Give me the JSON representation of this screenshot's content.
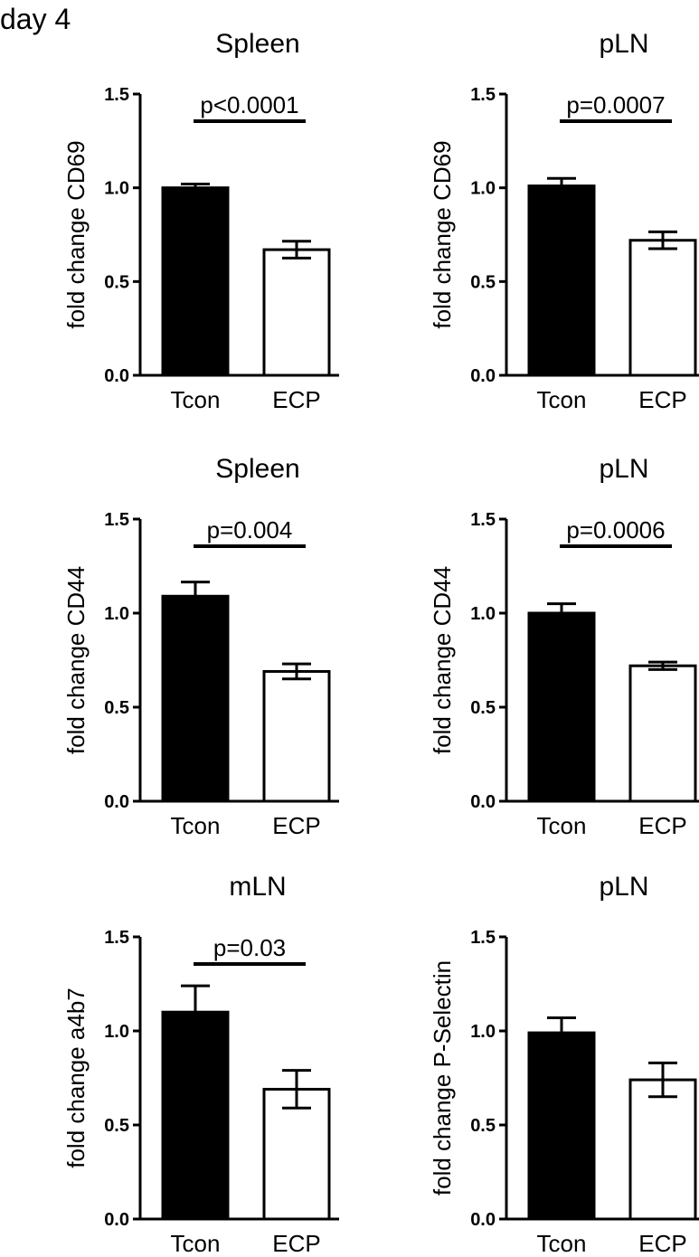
{
  "figure": {
    "panel_label": "day 4"
  },
  "colors": {
    "tcon_fill": "#000000",
    "ecp_fill": "#ffffff",
    "stroke": "#000000"
  },
  "chart_data": [
    {
      "type": "bar",
      "title": "Spleen",
      "ylabel": "fold change CD69",
      "xlabel": "",
      "categories": [
        "Tcon",
        "ECP"
      ],
      "values": [
        1.0,
        0.67
      ],
      "errors": [
        0.02,
        0.045
      ],
      "ylim": [
        0,
        1.5
      ],
      "yticks": [
        "0.0",
        "0.5",
        "1.0",
        "1.5"
      ],
      "grid": false,
      "legend": "none",
      "annotation": "p<0.0001"
    },
    {
      "type": "bar",
      "title": "pLN",
      "ylabel": "fold change CD69",
      "xlabel": "",
      "categories": [
        "Tcon",
        "ECP"
      ],
      "values": [
        1.01,
        0.72
      ],
      "errors": [
        0.04,
        0.045
      ],
      "ylim": [
        0,
        1.5
      ],
      "yticks": [
        "0.0",
        "0.5",
        "1.0",
        "1.5"
      ],
      "grid": false,
      "legend": "none",
      "annotation": "p=0.0007"
    },
    {
      "type": "bar",
      "title": "Spleen",
      "ylabel": "fold change CD44",
      "xlabel": "",
      "categories": [
        "Tcon",
        "ECP"
      ],
      "values": [
        1.09,
        0.69
      ],
      "errors": [
        0.075,
        0.04
      ],
      "ylim": [
        0,
        1.5
      ],
      "yticks": [
        "0.0",
        "0.5",
        "1.0",
        "1.5"
      ],
      "grid": false,
      "legend": "none",
      "annotation": "p=0.004"
    },
    {
      "type": "bar",
      "title": "pLN",
      "ylabel": "fold change CD44",
      "xlabel": "",
      "categories": [
        "Tcon",
        "ECP"
      ],
      "values": [
        1.0,
        0.72
      ],
      "errors": [
        0.05,
        0.02
      ],
      "ylim": [
        0,
        1.5
      ],
      "yticks": [
        "0.0",
        "0.5",
        "1.0",
        "1.5"
      ],
      "grid": false,
      "legend": "none",
      "annotation": "p=0.0006"
    },
    {
      "type": "bar",
      "title": "mLN",
      "ylabel": "fold change a4b7",
      "xlabel": "",
      "categories": [
        "Tcon",
        "ECP"
      ],
      "values": [
        1.1,
        0.69
      ],
      "errors": [
        0.14,
        0.1
      ],
      "ylim": [
        0,
        1.5
      ],
      "yticks": [
        "0.0",
        "0.5",
        "1.0",
        "1.5"
      ],
      "grid": false,
      "legend": "none",
      "annotation": "p=0.03"
    },
    {
      "type": "bar",
      "title": "pLN",
      "ylabel": "fold change P-Selectin",
      "xlabel": "",
      "categories": [
        "Tcon",
        "ECP"
      ],
      "values": [
        0.99,
        0.74
      ],
      "errors": [
        0.08,
        0.09
      ],
      "ylim": [
        0,
        1.5
      ],
      "yticks": [
        "0.0",
        "0.5",
        "1.0",
        "1.5"
      ],
      "grid": false,
      "legend": "none",
      "annotation": ""
    }
  ]
}
